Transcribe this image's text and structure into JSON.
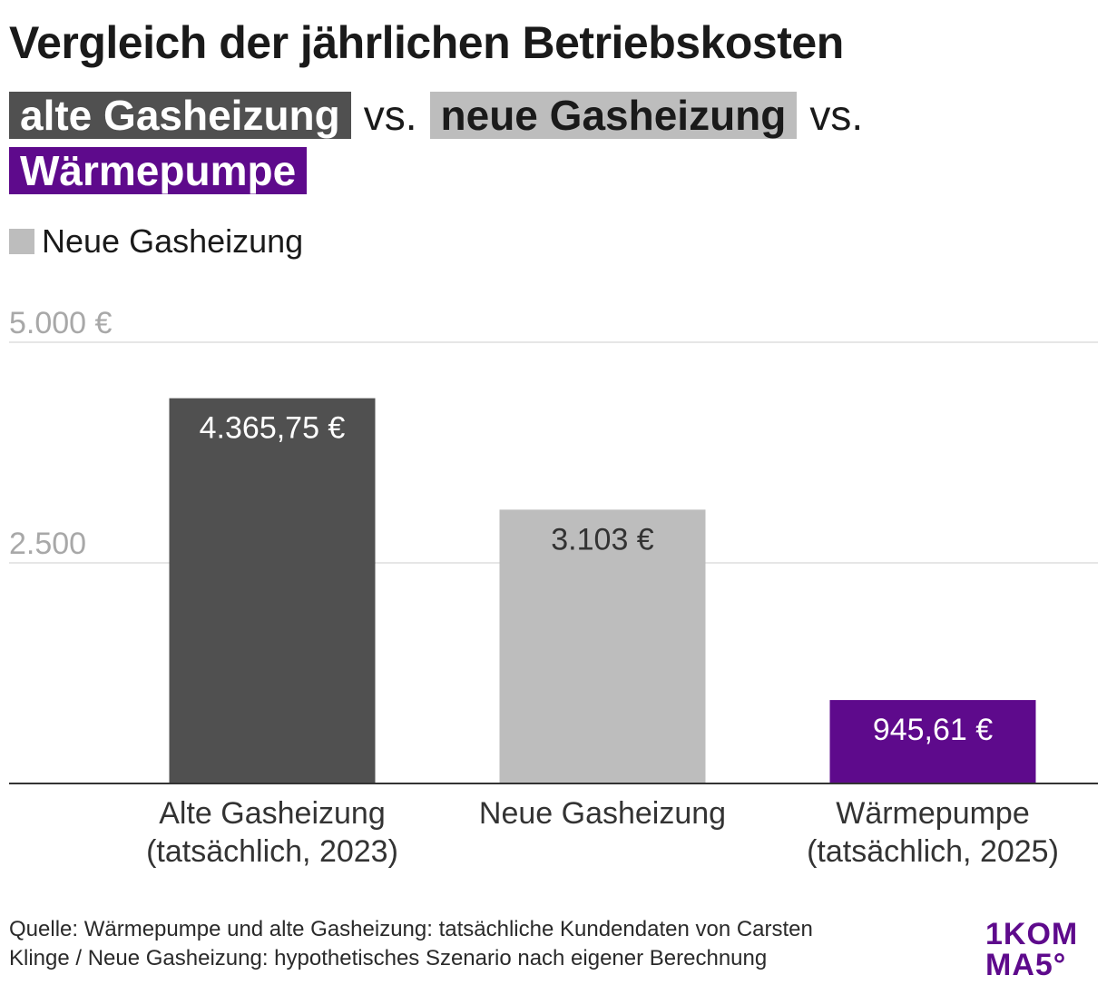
{
  "header": {
    "title": "Vergleich der jährlichen Betriebskosten",
    "subtitle": {
      "old_label": "alte Gasheizung",
      "vs1": "vs.",
      "new_label": "neue Gasheizung",
      "vs2": "vs.",
      "hp_label": "Wärmepumpe"
    }
  },
  "legend": {
    "items": [
      {
        "label": "Neue Gasheizung",
        "color": "#bdbdbd"
      }
    ]
  },
  "chart_data": {
    "type": "bar",
    "categories": [
      [
        "Alte Gasheizung",
        "(tatsächlich, 2023)"
      ],
      [
        "Neue Gasheizung"
      ],
      [
        "Wärmepumpe",
        "(tatsächlich, 2025)"
      ]
    ],
    "values": [
      4365.75,
      3103,
      945.61
    ],
    "value_labels": [
      "4.365,75 €",
      "3.103 €",
      "945,61 €"
    ],
    "colors": [
      "#505050",
      "#bdbdbd",
      "#5e0a8c"
    ],
    "value_label_colors": [
      "#ffffff",
      "#333333",
      "#ffffff"
    ],
    "yticks": [
      {
        "value": 2500,
        "label": "2.500"
      },
      {
        "value": 5000,
        "label": "5.000 €"
      }
    ],
    "ylim": [
      0,
      5000
    ],
    "grid": true
  },
  "footer": {
    "source_line1": "Quelle: Wärmepumpe und alte Gasheizung: tatsächliche Kundendaten von Carsten",
    "source_line2": "Klinge / Neue Gasheizung: hypothetisches Szenario nach eigener Berechnung",
    "logo_line1": "1KOM",
    "logo_line2": "MA5°"
  }
}
